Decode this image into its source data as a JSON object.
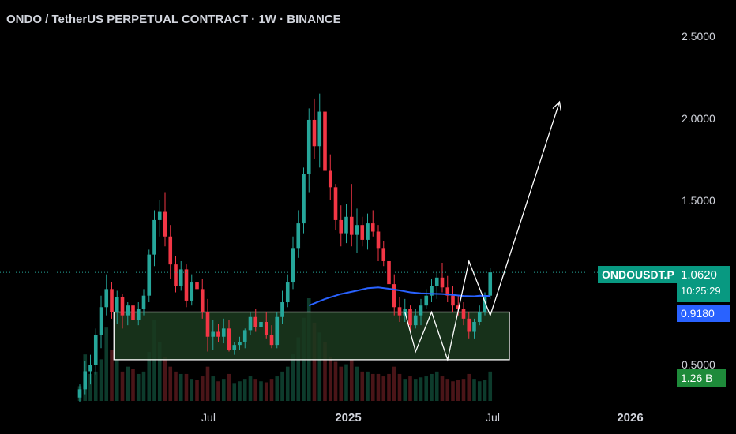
{
  "header": {
    "title": "ONDO / TetherUS PERPETUAL CONTRACT · 1W · BINANCE"
  },
  "colors": {
    "background": "#000000",
    "bull": "#26a69a",
    "bear": "#f23645",
    "ma": "#2962ff",
    "zone_fill": "#1b3a1f",
    "annotation": "#ffffff",
    "symbol_tag": "#089981",
    "ma_tag": "#2962ff",
    "volume_tag": "#1e8a3a"
  },
  "tags": {
    "symbol": "ONDOUSDT.P",
    "price": "1.0620",
    "countdown": "10:25:29",
    "ma_value": "0.9180",
    "volume": "1.26 B"
  },
  "chart_data": {
    "type": "candlestick",
    "title": "ONDO / TetherUS PERPETUAL CONTRACT · 1W · BINANCE",
    "y_ticks": [
      2.5,
      2.0,
      1.5,
      0.5
    ],
    "y_tick_labels": [
      "2.5000",
      "2.0000",
      "1.5000",
      "0.5000"
    ],
    "ylim": [
      0.27,
      2.72
    ],
    "x_ticks": [
      "Jul",
      "2025",
      "Jul",
      "2026"
    ],
    "last_price": 1.062,
    "ma_last": 0.918,
    "volume_last": "1.26 B",
    "candles": [
      [
        0.3,
        0.38,
        0.27,
        0.35
      ],
      [
        0.35,
        0.52,
        0.32,
        0.46
      ],
      [
        0.46,
        0.56,
        0.38,
        0.5
      ],
      [
        0.5,
        0.72,
        0.44,
        0.68
      ],
      [
        0.68,
        0.92,
        0.6,
        0.85
      ],
      [
        0.85,
        1.05,
        0.8,
        0.96
      ],
      [
        0.96,
        1.0,
        0.78,
        0.82
      ],
      [
        0.82,
        0.95,
        0.75,
        0.91
      ],
      [
        0.91,
        0.93,
        0.72,
        0.8
      ],
      [
        0.8,
        0.88,
        0.74,
        0.86
      ],
      [
        0.86,
        0.94,
        0.72,
        0.77
      ],
      [
        0.77,
        0.88,
        0.74,
        0.84
      ],
      [
        0.84,
        0.96,
        0.8,
        0.92
      ],
      [
        0.92,
        1.2,
        0.88,
        1.17
      ],
      [
        1.17,
        1.44,
        1.1,
        1.38
      ],
      [
        1.38,
        1.5,
        1.28,
        1.43
      ],
      [
        1.43,
        1.55,
        1.22,
        1.28
      ],
      [
        1.28,
        1.35,
        1.02,
        1.11
      ],
      [
        1.11,
        1.16,
        0.94,
        0.98
      ],
      [
        0.98,
        1.13,
        0.95,
        1.08
      ],
      [
        1.08,
        1.11,
        0.85,
        0.89
      ],
      [
        0.89,
        1.05,
        0.86,
        1.0
      ],
      [
        1.0,
        1.08,
        0.92,
        0.96
      ],
      [
        0.96,
        1.02,
        0.78,
        0.82
      ],
      [
        0.82,
        0.9,
        0.58,
        0.67
      ],
      [
        0.67,
        0.77,
        0.59,
        0.7
      ],
      [
        0.7,
        0.75,
        0.64,
        0.67
      ],
      [
        0.67,
        0.78,
        0.63,
        0.72
      ],
      [
        0.72,
        0.77,
        0.58,
        0.59
      ],
      [
        0.59,
        0.64,
        0.56,
        0.62
      ],
      [
        0.62,
        0.67,
        0.59,
        0.64
      ],
      [
        0.64,
        0.72,
        0.6,
        0.71
      ],
      [
        0.71,
        0.82,
        0.68,
        0.79
      ],
      [
        0.79,
        0.84,
        0.7,
        0.73
      ],
      [
        0.73,
        0.8,
        0.69,
        0.76
      ],
      [
        0.76,
        0.82,
        0.66,
        0.68
      ],
      [
        0.68,
        0.74,
        0.6,
        0.62
      ],
      [
        0.62,
        0.82,
        0.6,
        0.79
      ],
      [
        0.79,
        0.95,
        0.75,
        0.88
      ],
      [
        0.88,
        1.05,
        0.85,
        1.0
      ],
      [
        1.0,
        1.28,
        0.96,
        1.21
      ],
      [
        1.21,
        1.44,
        1.15,
        1.36
      ],
      [
        1.36,
        1.7,
        1.3,
        1.66
      ],
      [
        1.66,
        2.06,
        1.55,
        1.99
      ],
      [
        1.99,
        2.12,
        1.75,
        1.83
      ],
      [
        1.83,
        2.15,
        1.7,
        2.04
      ],
      [
        2.04,
        2.11,
        1.61,
        1.68
      ],
      [
        1.68,
        1.78,
        1.5,
        1.58
      ],
      [
        1.58,
        1.6,
        1.32,
        1.38
      ],
      [
        1.38,
        1.47,
        1.22,
        1.3
      ],
      [
        1.3,
        1.48,
        1.24,
        1.4
      ],
      [
        1.4,
        1.6,
        1.22,
        1.29
      ],
      [
        1.29,
        1.45,
        1.18,
        1.35
      ],
      [
        1.35,
        1.4,
        1.22,
        1.26
      ],
      [
        1.26,
        1.42,
        1.2,
        1.36
      ],
      [
        1.36,
        1.44,
        1.28,
        1.31
      ],
      [
        1.31,
        1.35,
        1.13,
        1.21
      ],
      [
        1.21,
        1.25,
        1.1,
        1.13
      ],
      [
        1.13,
        1.16,
        0.94,
        0.99
      ],
      [
        0.99,
        1.05,
        0.8,
        0.85
      ],
      [
        0.85,
        0.91,
        0.76,
        0.8
      ],
      [
        0.8,
        0.9,
        0.76,
        0.84
      ],
      [
        0.84,
        0.86,
        0.7,
        0.74
      ],
      [
        0.74,
        0.84,
        0.72,
        0.8
      ],
      [
        0.8,
        0.9,
        0.74,
        0.86
      ],
      [
        0.86,
        0.96,
        0.84,
        0.92
      ],
      [
        0.92,
        1.02,
        0.88,
        0.98
      ],
      [
        0.98,
        1.06,
        0.9,
        1.03
      ],
      [
        1.03,
        1.12,
        0.94,
        0.97
      ],
      [
        0.97,
        1.04,
        0.88,
        0.92
      ],
      [
        0.92,
        0.98,
        0.82,
        0.86
      ],
      [
        0.86,
        0.92,
        0.8,
        0.84
      ],
      [
        0.84,
        0.88,
        0.74,
        0.78
      ],
      [
        0.78,
        0.82,
        0.66,
        0.7
      ],
      [
        0.7,
        0.78,
        0.66,
        0.76
      ],
      [
        0.76,
        0.86,
        0.74,
        0.82
      ],
      [
        0.82,
        0.94,
        0.8,
        0.92
      ],
      [
        0.92,
        1.09,
        0.9,
        1.062
      ]
    ],
    "ma": [
      [
        43,
        0.86
      ],
      [
        46,
        0.9
      ],
      [
        49,
        0.93
      ],
      [
        52,
        0.95
      ],
      [
        54,
        0.965
      ],
      [
        56,
        0.97
      ],
      [
        58,
        0.962
      ],
      [
        60,
        0.952
      ],
      [
        62,
        0.94
      ],
      [
        64,
        0.934
      ],
      [
        66,
        0.932
      ],
      [
        68,
        0.93
      ],
      [
        70,
        0.925
      ],
      [
        72,
        0.918
      ],
      [
        74,
        0.916
      ],
      [
        75,
        0.92
      ],
      [
        77,
        0.918
      ]
    ],
    "volume": [
      30,
      95,
      55,
      60,
      85,
      150,
      105,
      85,
      60,
      70,
      65,
      55,
      60,
      100,
      165,
      120,
      90,
      70,
      60,
      55,
      55,
      45,
      42,
      50,
      70,
      50,
      40,
      45,
      55,
      35,
      40,
      45,
      50,
      45,
      40,
      38,
      45,
      50,
      60,
      70,
      95,
      130,
      170,
      210,
      160,
      140,
      120,
      90,
      80,
      70,
      75,
      85,
      70,
      60,
      60,
      55,
      55,
      50,
      55,
      70,
      55,
      45,
      50,
      45,
      48,
      50,
      55,
      60,
      50,
      45,
      40,
      42,
      45,
      55,
      45,
      40,
      42,
      60
    ],
    "zone": {
      "price_top": 0.82,
      "price_bottom": 0.53,
      "start_index": 7,
      "end_index": 80
    },
    "projection_path": [
      [
        61,
        0.82
      ],
      [
        63,
        0.58
      ],
      [
        66,
        0.82
      ],
      [
        69,
        0.53
      ],
      [
        73,
        1.13
      ],
      [
        77,
        0.8
      ],
      [
        90,
        2.1
      ]
    ]
  }
}
